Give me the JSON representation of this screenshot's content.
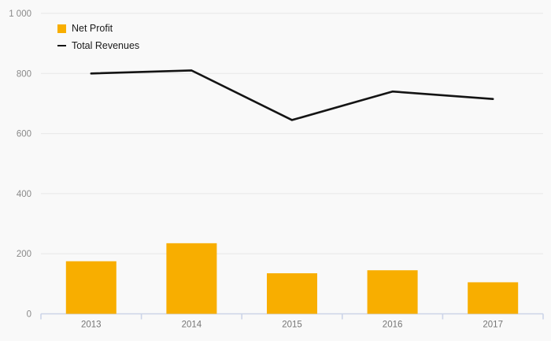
{
  "chart": {
    "background_color": "#f9f9f9",
    "bar_color": "#F8AE00",
    "line_color": "#141414",
    "grid_color": "#e7e7e7",
    "axis_color": "#ccd4e8",
    "tick_label_color": "#8a8a8a",
    "legend_text_color": "#1a1a1a"
  },
  "legend": {
    "items": [
      {
        "label": "Net Profit",
        "swatch": "square-icon",
        "color": "#F8AE00"
      },
      {
        "label": "Total Revenues",
        "swatch": "line-icon",
        "color": "#141414"
      }
    ]
  },
  "chart_data": {
    "type": "bar",
    "subtype": "bar+line combo",
    "categories": [
      "2013",
      "2014",
      "2015",
      "2016",
      "2017"
    ],
    "series": [
      {
        "name": "Net Profit",
        "type": "bar",
        "color": "#F8AE00",
        "values": [
          175,
          235,
          135,
          145,
          105
        ]
      },
      {
        "name": "Total Revenues",
        "type": "line",
        "color": "#141414",
        "values": [
          800,
          810,
          645,
          740,
          715
        ]
      }
    ],
    "title": "",
    "xlabel": "",
    "ylabel": "",
    "ylim": [
      0,
      1000
    ],
    "ytick_interval": 200,
    "ytick_labels": [
      "0",
      "200",
      "400",
      "600",
      "800",
      "1 000"
    ],
    "grid": true,
    "legend_position": "top-left"
  }
}
